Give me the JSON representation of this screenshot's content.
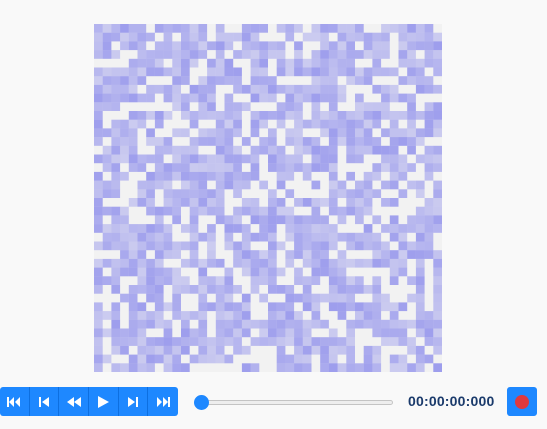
{
  "player": {
    "buttons": [
      {
        "name": "first-frame-button",
        "icon": "skip-to-start-icon"
      },
      {
        "name": "step-back-button",
        "icon": "step-back-icon"
      },
      {
        "name": "rewind-button",
        "icon": "rewind-icon"
      },
      {
        "name": "play-button",
        "icon": "play-icon"
      },
      {
        "name": "step-forward-button",
        "icon": "step-forward-icon"
      },
      {
        "name": "last-frame-button",
        "icon": "skip-to-end-icon"
      }
    ],
    "timecode": "00:00:00:000",
    "progress": 0,
    "record_icon": "record-icon"
  },
  "colors": {
    "accent": "#1e88ff",
    "record": "#e0393e",
    "heatmap": "#4a4ae8",
    "heatmap_bg": "#f2f2f2"
  }
}
